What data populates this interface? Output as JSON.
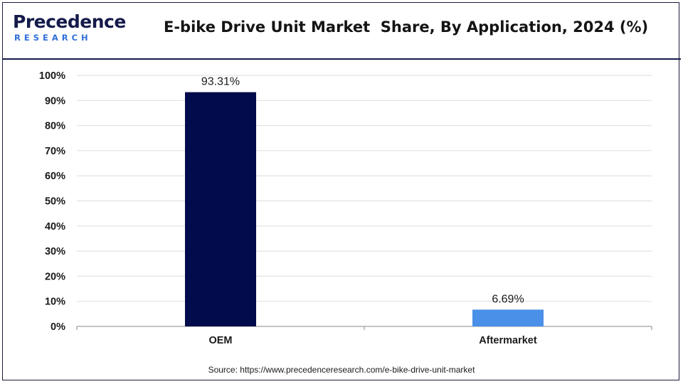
{
  "logo": {
    "word": "Precedence",
    "sub": "RESEARCH"
  },
  "colors": {
    "OEM": "#020b4b",
    "Aftermarket": "#4a90e8",
    "grid": "#dddddd",
    "accent": "#141a4a"
  },
  "chart_data": {
    "type": "bar",
    "title": "E-bike Drive Unit Market  Share, By Application, 2024 (%)",
    "categories": [
      "OEM",
      "Aftermarket"
    ],
    "values": [
      93.31,
      6.69
    ],
    "data_labels": [
      "93.31%",
      "6.69%"
    ],
    "ylim": [
      0,
      100
    ],
    "yticks": [
      0,
      10,
      20,
      30,
      40,
      50,
      60,
      70,
      80,
      90,
      100
    ],
    "ytick_labels": [
      "0%",
      "10%",
      "20%",
      "30%",
      "40%",
      "50%",
      "60%",
      "70%",
      "80%",
      "90%",
      "100%"
    ],
    "grid": true,
    "xlabel": "",
    "ylabel": ""
  },
  "source": "Source: https://www.precedenceresearch.com/e-bike-drive-unit-market"
}
